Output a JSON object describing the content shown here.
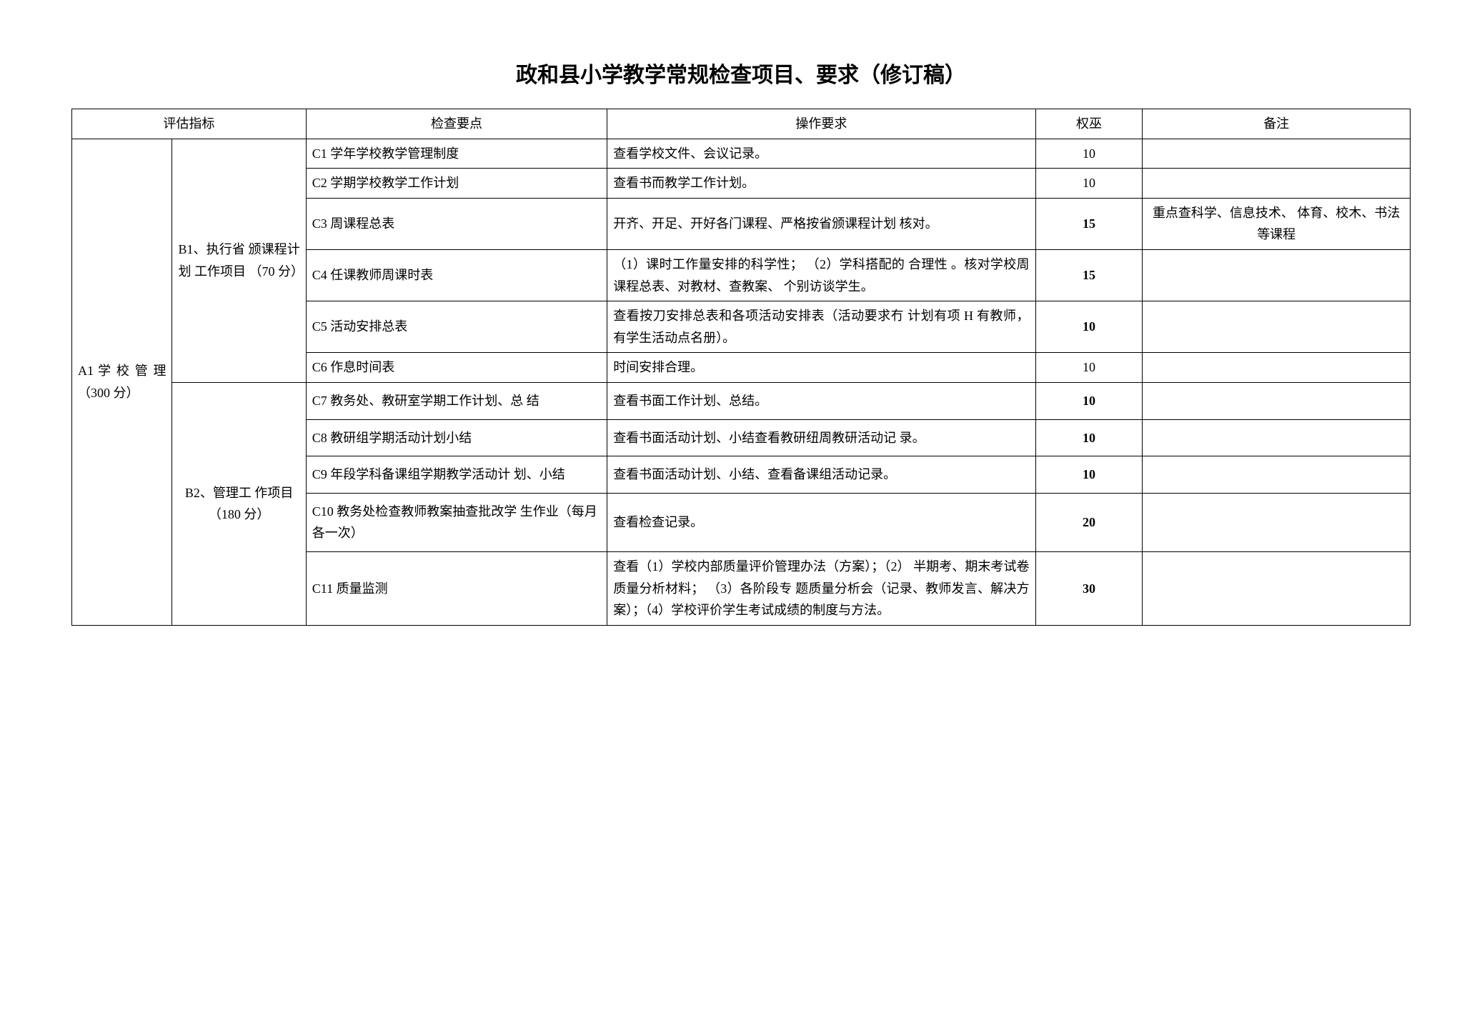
{
  "doc": {
    "title": "政和县小学教学常规检查项目、要求（修订稿）",
    "headers": {
      "eval": "评估指标",
      "point": "检查要点",
      "req": "操作要求",
      "weight": "权巫",
      "note": "备注"
    },
    "a1": "A1 学 校 管 理 （300 分）",
    "b1": "B1、执行省 颁课程计划 工作项目 （70 分）",
    "b2": "B2、管理工 作项目（180 分）",
    "rows": [
      {
        "c": "C1 学年学校教学管理制度",
        "d": "查看学校文件、会议记录。",
        "e": "10",
        "f": ""
      },
      {
        "c": "C2 学期学校教学工作计划",
        "d": "查看书而教学工作计划。",
        "e": "10",
        "f": ""
      },
      {
        "c": "C3 周课程总表",
        "d": "开齐、开足、开好各门课程、严格按省颁课程计划 核对。",
        "e": "15",
        "f": "重点查科学、信息技术、 体育、校木、书法等课程"
      },
      {
        "c": "C4 任课教师周课时表",
        "d": "（1）课时工作量安排的科学性； （2）学科搭配的 合理性 。核对学校周课程总表、对教材、查教案、 个别访谈学生。",
        "e": "15",
        "f": ""
      },
      {
        "c": "C5 活动安排总表",
        "d": "查看按刀安排总表和各项活动安排表（活动要求冇 计划有项 H 有教师，有学生活动点名册）。",
        "e": "10",
        "f": ""
      },
      {
        "c": "C6 作息时间表",
        "d": "时间安排合理。",
        "e": "10",
        "f": ""
      },
      {
        "c": "C7 教务处、教研室学期工作计划、总 结",
        "d": "查看书面工作计划、总结。",
        "e": "10",
        "f": ""
      },
      {
        "c": "C8 教研组学期活动计划小结",
        "d": "查看书面活动计划、小结查看教研纽周教研活动记 录。",
        "e": "10",
        "f": ""
      },
      {
        "c": "C9 年段学科备课组学期教学活动计 划、小结",
        "d": "查看书面活动计划、小结、查看备课组活动记录。",
        "e": "10",
        "f": ""
      },
      {
        "c": "C10 教务处检查教师教案抽查批改学 生作业（每月各一次）",
        "d": "查看检查记录。",
        "e": "20",
        "f": ""
      },
      {
        "c": "C11 质量监测",
        "d": "查看（1）学校内部质量评价管理办法（方案）；（2） 半期考、期末考试卷质量分析材料； （3）各阶段专 题质量分析会（记录、教师发言、解决方案）；（4）学校评价学生考试成绩的制度与方法。",
        "e": "30",
        "f": ""
      }
    ]
  }
}
